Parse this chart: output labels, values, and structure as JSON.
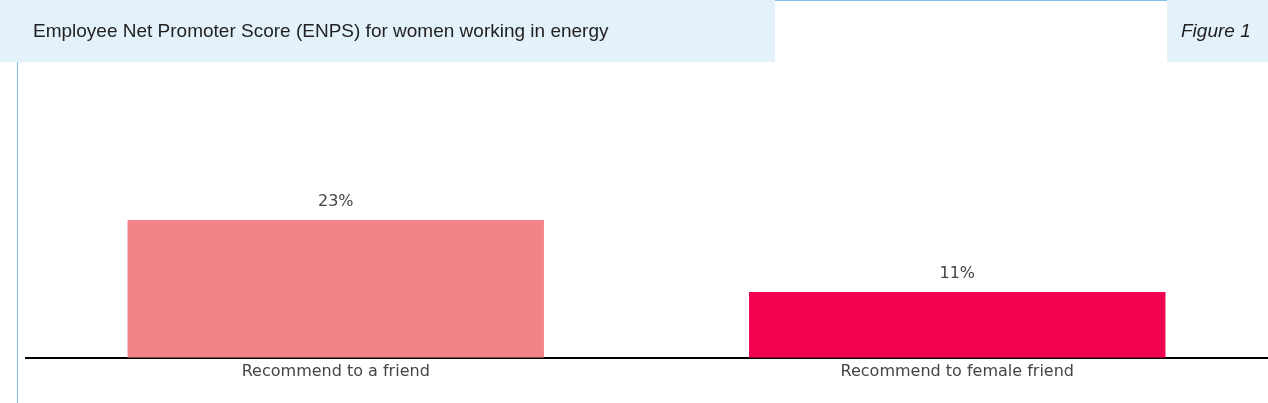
{
  "chart_data": {
    "type": "bar",
    "title": "Employee Net Promoter Score (ENPS) for women working in energy",
    "annotations": [
      "Figure 1"
    ],
    "categories": [
      "Recommend to a friend",
      "Recommend to female friend"
    ],
    "values": [
      23,
      11
    ],
    "colors": [
      "#f28489",
      "#f2034f"
    ],
    "value_labels": [
      "23%",
      "11%"
    ],
    "grid": false,
    "legend": false
  }
}
